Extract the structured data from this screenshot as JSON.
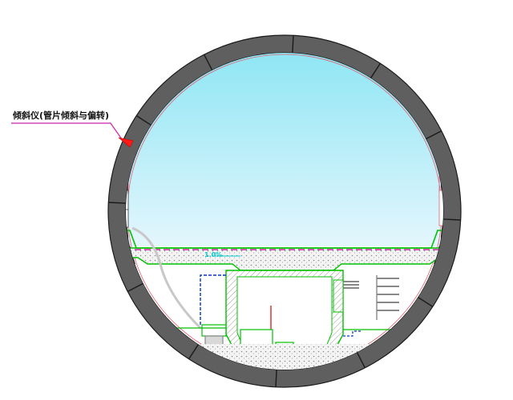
{
  "drawing": {
    "callout_text": "倾斜仪(管片倾斜与偏转)",
    "grade_text": "1.0%",
    "segment_joints": 12
  },
  "colors": {
    "lining": "#5f5f5f",
    "lining_edge": "#1a1a1a",
    "sky_top": "#8fe6f4",
    "sky_bottom": "#e4f6fd",
    "structure": "#00c000",
    "hatch": "#9a9a9a",
    "callout": "#cc22aa",
    "instrument": "#ff1a1a",
    "grade": "#00cccc",
    "cable_tray": "#0033cc",
    "cable_route": "#0033cc"
  }
}
